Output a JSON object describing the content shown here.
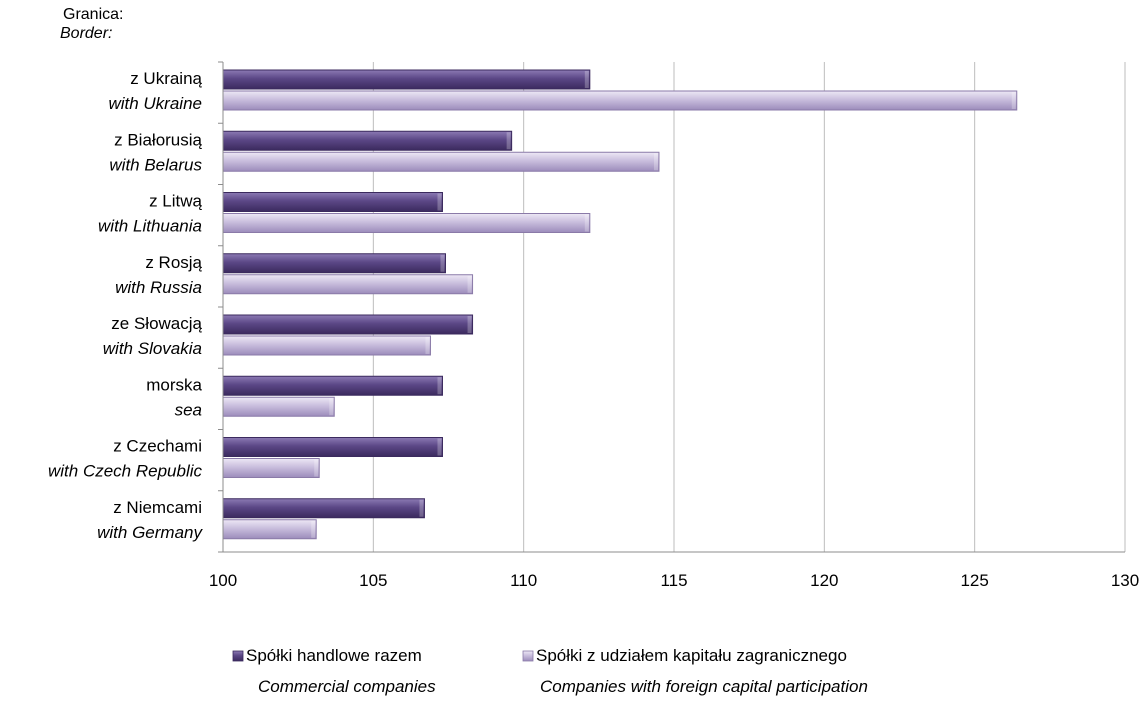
{
  "chart_data": {
    "type": "bar",
    "orientation": "horizontal",
    "axis_title": {
      "line1": "Granica:",
      "line2": "Border:"
    },
    "categories": [
      {
        "pl": "z Ukrainą",
        "en": "with Ukraine"
      },
      {
        "pl": "z Białorusią",
        "en": "with Belarus"
      },
      {
        "pl": "z Litwą",
        "en": "with Lithuania"
      },
      {
        "pl": "z Rosją",
        "en": "with Russia"
      },
      {
        "pl": "ze Słowacją",
        "en": "with Slovakia"
      },
      {
        "pl": "morska",
        "en": "sea"
      },
      {
        "pl": "z Czechami",
        "en": "with Czech Republic"
      },
      {
        "pl": "z Niemcami",
        "en": "with Germany"
      }
    ],
    "series": [
      {
        "name": "Spółki handlowe razem",
        "name_en": "Commercial companies",
        "color": "#5b4786",
        "values": [
          112.2,
          109.6,
          107.3,
          107.4,
          108.3,
          107.3,
          107.3,
          106.7
        ]
      },
      {
        "name": "Spółki z udziałem kapitału zagranicznego",
        "name_en": "Companies with foreign capital  participation",
        "color": "#c9bedd",
        "values": [
          126.4,
          114.5,
          112.2,
          108.3,
          106.9,
          103.7,
          103.2,
          103.1
        ]
      }
    ],
    "xlim": [
      100,
      130
    ],
    "xticks": [
      "100",
      "105",
      "110",
      "115",
      "120",
      "125",
      "130"
    ],
    "grid": true,
    "legend_position": "bottom"
  }
}
